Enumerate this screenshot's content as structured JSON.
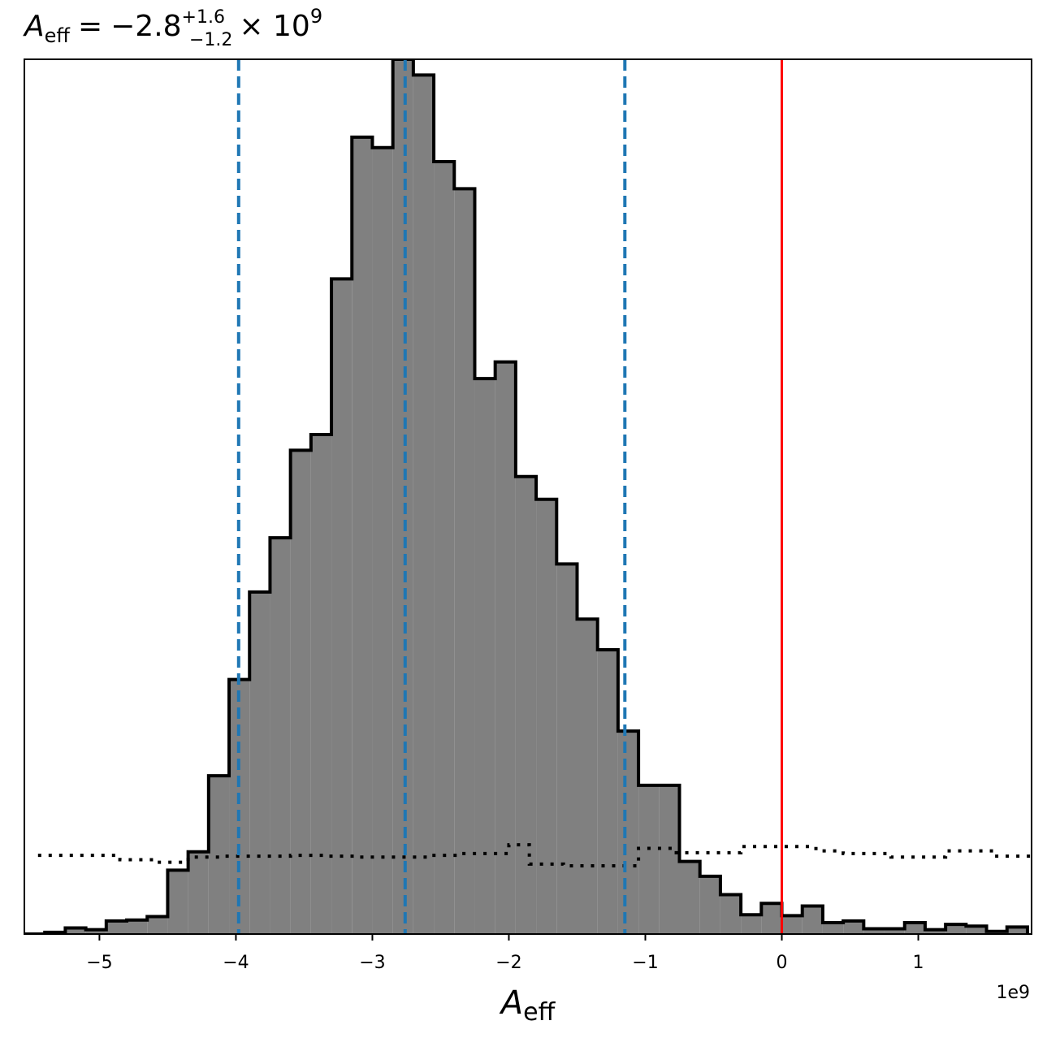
{
  "chart_data": {
    "type": "histogram",
    "title": {
      "symbol": "A",
      "symbol_sub": "eff",
      "equals": "=",
      "value": "−2.8",
      "err_plus": "+1.6",
      "err_minus": "−1.2",
      "times": "× 10",
      "exponent": "9"
    },
    "xlabel": {
      "symbol": "A",
      "sub": "eff"
    },
    "x_offset_label": "1e9",
    "xlim": [
      -5.55,
      1.83
    ],
    "ylim": [
      0,
      1.0
    ],
    "x_scale_factor": 1000000000,
    "x_ticks": [
      -5,
      -4,
      -3,
      -2,
      -1,
      0,
      1
    ],
    "x_tick_labels": [
      "−5",
      "−4",
      "−3",
      "−2",
      "−1",
      "0",
      "1"
    ],
    "grid": false,
    "posterior_histogram": {
      "bin_edges": [
        -5.55,
        -5.4,
        -5.25,
        -5.1,
        -4.95,
        -4.8,
        -4.65,
        -4.5,
        -4.35,
        -4.2,
        -4.05,
        -3.9,
        -3.75,
        -3.6,
        -3.45,
        -3.3,
        -3.15,
        -3.0,
        -2.85,
        -2.7,
        -2.55,
        -2.4,
        -2.25,
        -2.1,
        -1.95,
        -1.8,
        -1.65,
        -1.5,
        -1.35,
        -1.2,
        -1.05,
        -0.9,
        -0.75,
        -0.6,
        -0.45,
        -0.3,
        -0.15,
        0.0,
        0.15,
        0.3,
        0.45,
        0.6,
        0.75,
        0.9,
        1.05,
        1.2,
        1.35,
        1.5,
        1.65,
        1.8
      ],
      "density": [
        0.0,
        0.002,
        0.007,
        0.005,
        0.015,
        0.016,
        0.02,
        0.073,
        0.094,
        0.181,
        0.291,
        0.391,
        0.453,
        0.553,
        0.571,
        0.749,
        0.911,
        0.899,
        1.0,
        0.982,
        0.883,
        0.852,
        0.635,
        0.654,
        0.523,
        0.497,
        0.423,
        0.36,
        0.325,
        0.232,
        0.17,
        0.17,
        0.083,
        0.066,
        0.045,
        0.022,
        0.035,
        0.021,
        0.032,
        0.013,
        0.015,
        0.006,
        0.006,
        0.013,
        0.005,
        0.011,
        0.009,
        0.003,
        0.008
      ],
      "fill_color": "#808080",
      "edge_color": "#000000"
    },
    "prior_step": {
      "x_edges": [
        -5.45,
        -4.85,
        -4.6,
        -4.35,
        -4.1,
        -3.85,
        -3.6,
        -3.35,
        -3.1,
        -2.85,
        -2.6,
        -2.35,
        -2.0,
        -1.85,
        -1.6,
        -1.2,
        -1.05,
        -0.8,
        -0.4,
        -0.3,
        0.0,
        0.25,
        0.45,
        0.8,
        1.2,
        1.55,
        1.83
      ],
      "density": [
        0.09,
        0.085,
        0.082,
        0.088,
        0.089,
        0.089,
        0.09,
        0.089,
        0.088,
        0.088,
        0.09,
        0.092,
        0.102,
        0.08,
        0.078,
        0.078,
        0.098,
        0.093,
        0.093,
        0.1,
        0.1,
        0.095,
        0.092,
        0.088,
        0.095,
        0.089,
        0.093
      ],
      "color": "#000000",
      "style": "dotted"
    },
    "quantile_lines": {
      "x": [
        -3.98,
        -2.76,
        -1.15
      ],
      "color": "#1f77b4",
      "style": "dashed"
    },
    "truth_line": {
      "x": 0.0,
      "color": "#ff0000",
      "style": "solid"
    }
  }
}
